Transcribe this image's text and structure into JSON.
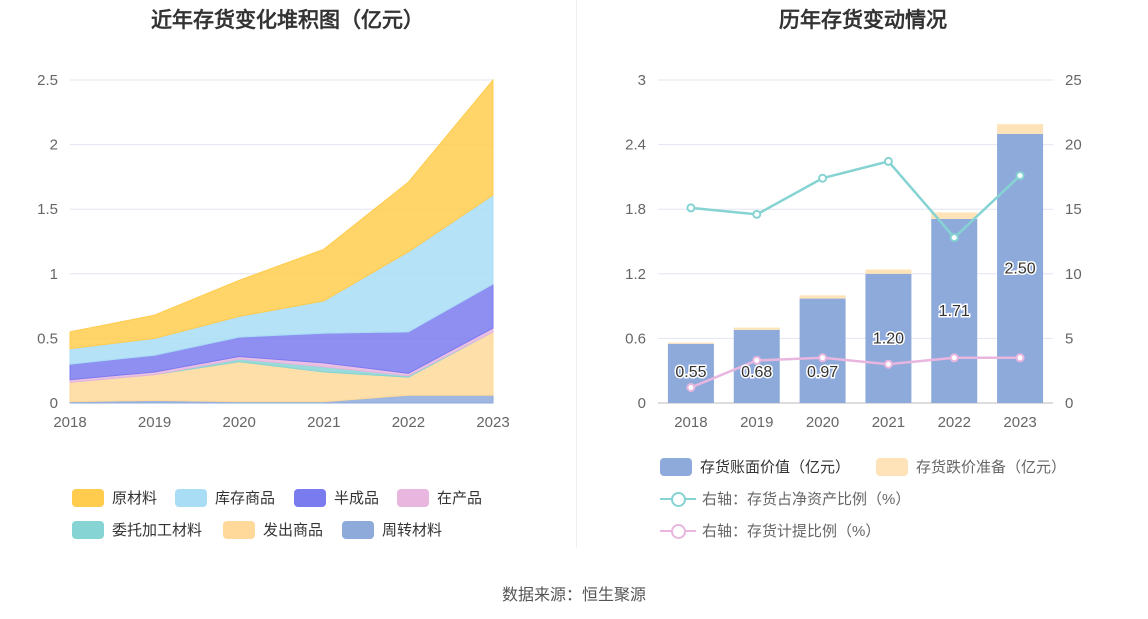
{
  "left_title": "近年存货变化堆积图（亿元）",
  "right_title": "历年存货变动情况",
  "source": "数据来源：恒生聚源",
  "chart_data": [
    {
      "type": "area",
      "stacked": true,
      "title": "近年存货变化堆积图（亿元）",
      "x": [
        "2018",
        "2019",
        "2020",
        "2021",
        "2022",
        "2023"
      ],
      "ylim": [
        0,
        2.5
      ],
      "yticks": [
        "0",
        "0.5",
        "1",
        "1.5",
        "2",
        "2.5"
      ],
      "grid": true,
      "legend_position": "bottom",
      "series": [
        {
          "name": "周转材料",
          "color": "#8eaadb",
          "values": [
            0.01,
            0.02,
            0.01,
            0.01,
            0.06,
            0.06
          ]
        },
        {
          "name": "发出商品",
          "color": "#ffd99a",
          "values": [
            0.15,
            0.2,
            0.31,
            0.23,
            0.14,
            0.49
          ]
        },
        {
          "name": "委托加工材料",
          "color": "#87d4d4",
          "values": [
            0.0,
            0.0,
            0.02,
            0.04,
            0.01,
            0.0
          ]
        },
        {
          "name": "在产品",
          "color": "#e8b6de",
          "values": [
            0.02,
            0.02,
            0.02,
            0.03,
            0.02,
            0.03
          ]
        },
        {
          "name": "半成品",
          "color": "#7b7bf0",
          "values": [
            0.12,
            0.13,
            0.15,
            0.23,
            0.32,
            0.34
          ]
        },
        {
          "name": "库存商品",
          "color": "#a8ddf5",
          "values": [
            0.12,
            0.13,
            0.16,
            0.25,
            0.62,
            0.69
          ]
        },
        {
          "name": "原材料",
          "color": "#ffcc4d",
          "values": [
            0.13,
            0.18,
            0.28,
            0.4,
            0.54,
            0.89
          ]
        }
      ],
      "legend_order": [
        "原材料",
        "库存商品",
        "半成品",
        "在产品",
        "委托加工材料",
        "发出商品",
        "周转材料"
      ]
    },
    {
      "type": "bar",
      "stacked": true,
      "title": "历年存货变动情况",
      "categories": [
        "2018",
        "2019",
        "2020",
        "2021",
        "2022",
        "2023"
      ],
      "ylim": [
        0,
        3
      ],
      "yticks": [
        "0",
        "0.6",
        "1.2",
        "1.8",
        "2.4",
        "3"
      ],
      "y2lim": [
        0,
        25
      ],
      "y2ticks": [
        "0",
        "5",
        "10",
        "15",
        "20",
        "25"
      ],
      "grid": true,
      "legend_position": "bottom",
      "series": [
        {
          "name": "存货账面价值（亿元）",
          "color": "#8eaadb",
          "values": [
            0.55,
            0.68,
            0.97,
            1.2,
            1.71,
            2.5
          ],
          "labels": [
            "0.55",
            "0.68",
            "0.97",
            "1.20",
            "1.71",
            "2.50"
          ]
        },
        {
          "name": "存货跌价准备（亿元）",
          "color": "#ffe3b8",
          "values": [
            0.01,
            0.02,
            0.03,
            0.04,
            0.06,
            0.09
          ]
        }
      ],
      "line_series": [
        {
          "name": "右轴：存货占净资产比例（%）",
          "color": "#86d3d3",
          "values": [
            15.1,
            14.6,
            17.4,
            18.7,
            12.8,
            17.6
          ]
        },
        {
          "name": "右轴：存货计提比例（%）",
          "color": "#e8b6de",
          "values": [
            1.2,
            3.3,
            3.5,
            3.0,
            3.5,
            3.5
          ]
        }
      ]
    }
  ]
}
